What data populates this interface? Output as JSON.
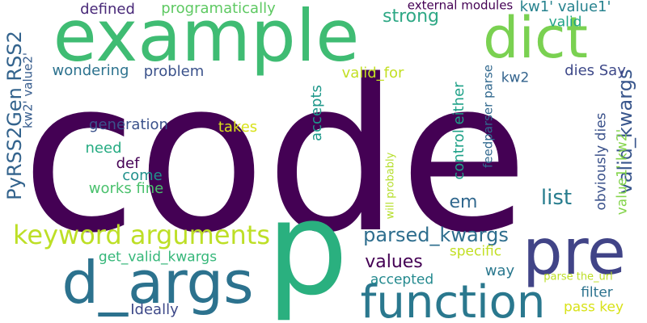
{
  "words": [
    {
      "text": "code",
      "color": "#440154",
      "vertical": false
    },
    {
      "text": "example",
      "color": "#3fbc73",
      "vertical": false
    },
    {
      "text": "dict",
      "color": "#7ad151",
      "vertical": false
    },
    {
      "text": "p",
      "color": "#2ab07f",
      "vertical": false
    },
    {
      "text": "pre",
      "color": "#414487",
      "vertical": false
    },
    {
      "text": "d_args",
      "color": "#2c728e",
      "vertical": false
    },
    {
      "text": "function",
      "color": "#2a788e",
      "vertical": false
    },
    {
      "text": "keyword arguments",
      "color": "#bddf26",
      "vertical": false
    },
    {
      "text": "parsed_kwargs",
      "color": "#2e6e8e",
      "vertical": false
    },
    {
      "text": "PyRSS2Gen RSS2",
      "color": "#33638d",
      "vertical": true
    },
    {
      "text": "valid_kwargs",
      "color": "#39568c",
      "vertical": true
    },
    {
      "text": "strong",
      "color": "#2ea885",
      "vertical": false
    },
    {
      "text": "list",
      "color": "#287d8e",
      "vertical": false
    },
    {
      "text": "values",
      "color": "#440154",
      "vertical": false
    },
    {
      "text": "em",
      "color": "#31688e",
      "vertical": false
    },
    {
      "text": "programatically",
      "color": "#5ec962",
      "vertical": false
    },
    {
      "text": "defined",
      "color": "#482878",
      "vertical": false
    },
    {
      "text": "valid",
      "color": "#20a386",
      "vertical": false
    },
    {
      "text": "kw1' value1'",
      "color": "#26828e",
      "vertical": false
    },
    {
      "text": "external modules",
      "color": "#440154",
      "vertical": false
    },
    {
      "text": "wondering",
      "color": "#2c728e",
      "vertical": false
    },
    {
      "text": "problem",
      "color": "#3b528b",
      "vertical": false
    },
    {
      "text": "valid_for",
      "color": "#c2df23",
      "vertical": false
    },
    {
      "text": "dies Say",
      "color": "#3e4989",
      "vertical": false
    },
    {
      "text": "kw2",
      "color": "#33638d",
      "vertical": false
    },
    {
      "text": "kw2' value2'",
      "color": "#365c8d",
      "vertical": true
    },
    {
      "text": "accepts",
      "color": "#1f988b",
      "vertical": true
    },
    {
      "text": "control either",
      "color": "#1fa188",
      "vertical": true
    },
    {
      "text": "feedparser parse",
      "color": "#31688e",
      "vertical": true
    },
    {
      "text": "obviously dies",
      "color": "#3b528b",
      "vertical": true
    },
    {
      "text": "value1' kw2'",
      "color": "#84d44b",
      "vertical": true
    },
    {
      "text": "generation",
      "color": "#3b528b",
      "vertical": false
    },
    {
      "text": "takes",
      "color": "#d8e219",
      "vertical": false
    },
    {
      "text": "need",
      "color": "#25ab82",
      "vertical": false
    },
    {
      "text": "def",
      "color": "#440154",
      "vertical": false
    },
    {
      "text": "come",
      "color": "#21918c",
      "vertical": false
    },
    {
      "text": "works fine",
      "color": "#4ac16d",
      "vertical": false
    },
    {
      "text": "will probably",
      "color": "#b5de2b",
      "vertical": true
    },
    {
      "text": "get_valid_kwargs",
      "color": "#35b779",
      "vertical": false
    },
    {
      "text": "specific",
      "color": "#c2df23",
      "vertical": false
    },
    {
      "text": "way",
      "color": "#2a788e",
      "vertical": false
    },
    {
      "text": "accepted",
      "color": "#23898e",
      "vertical": false
    },
    {
      "text": "parse the_url",
      "color": "#bddf26",
      "vertical": false
    },
    {
      "text": "filter",
      "color": "#2c728e",
      "vertical": false
    },
    {
      "text": "pass key",
      "color": "#d8e219",
      "vertical": false
    },
    {
      "text": "Ideally",
      "color": "#3e4989",
      "vertical": false
    }
  ]
}
